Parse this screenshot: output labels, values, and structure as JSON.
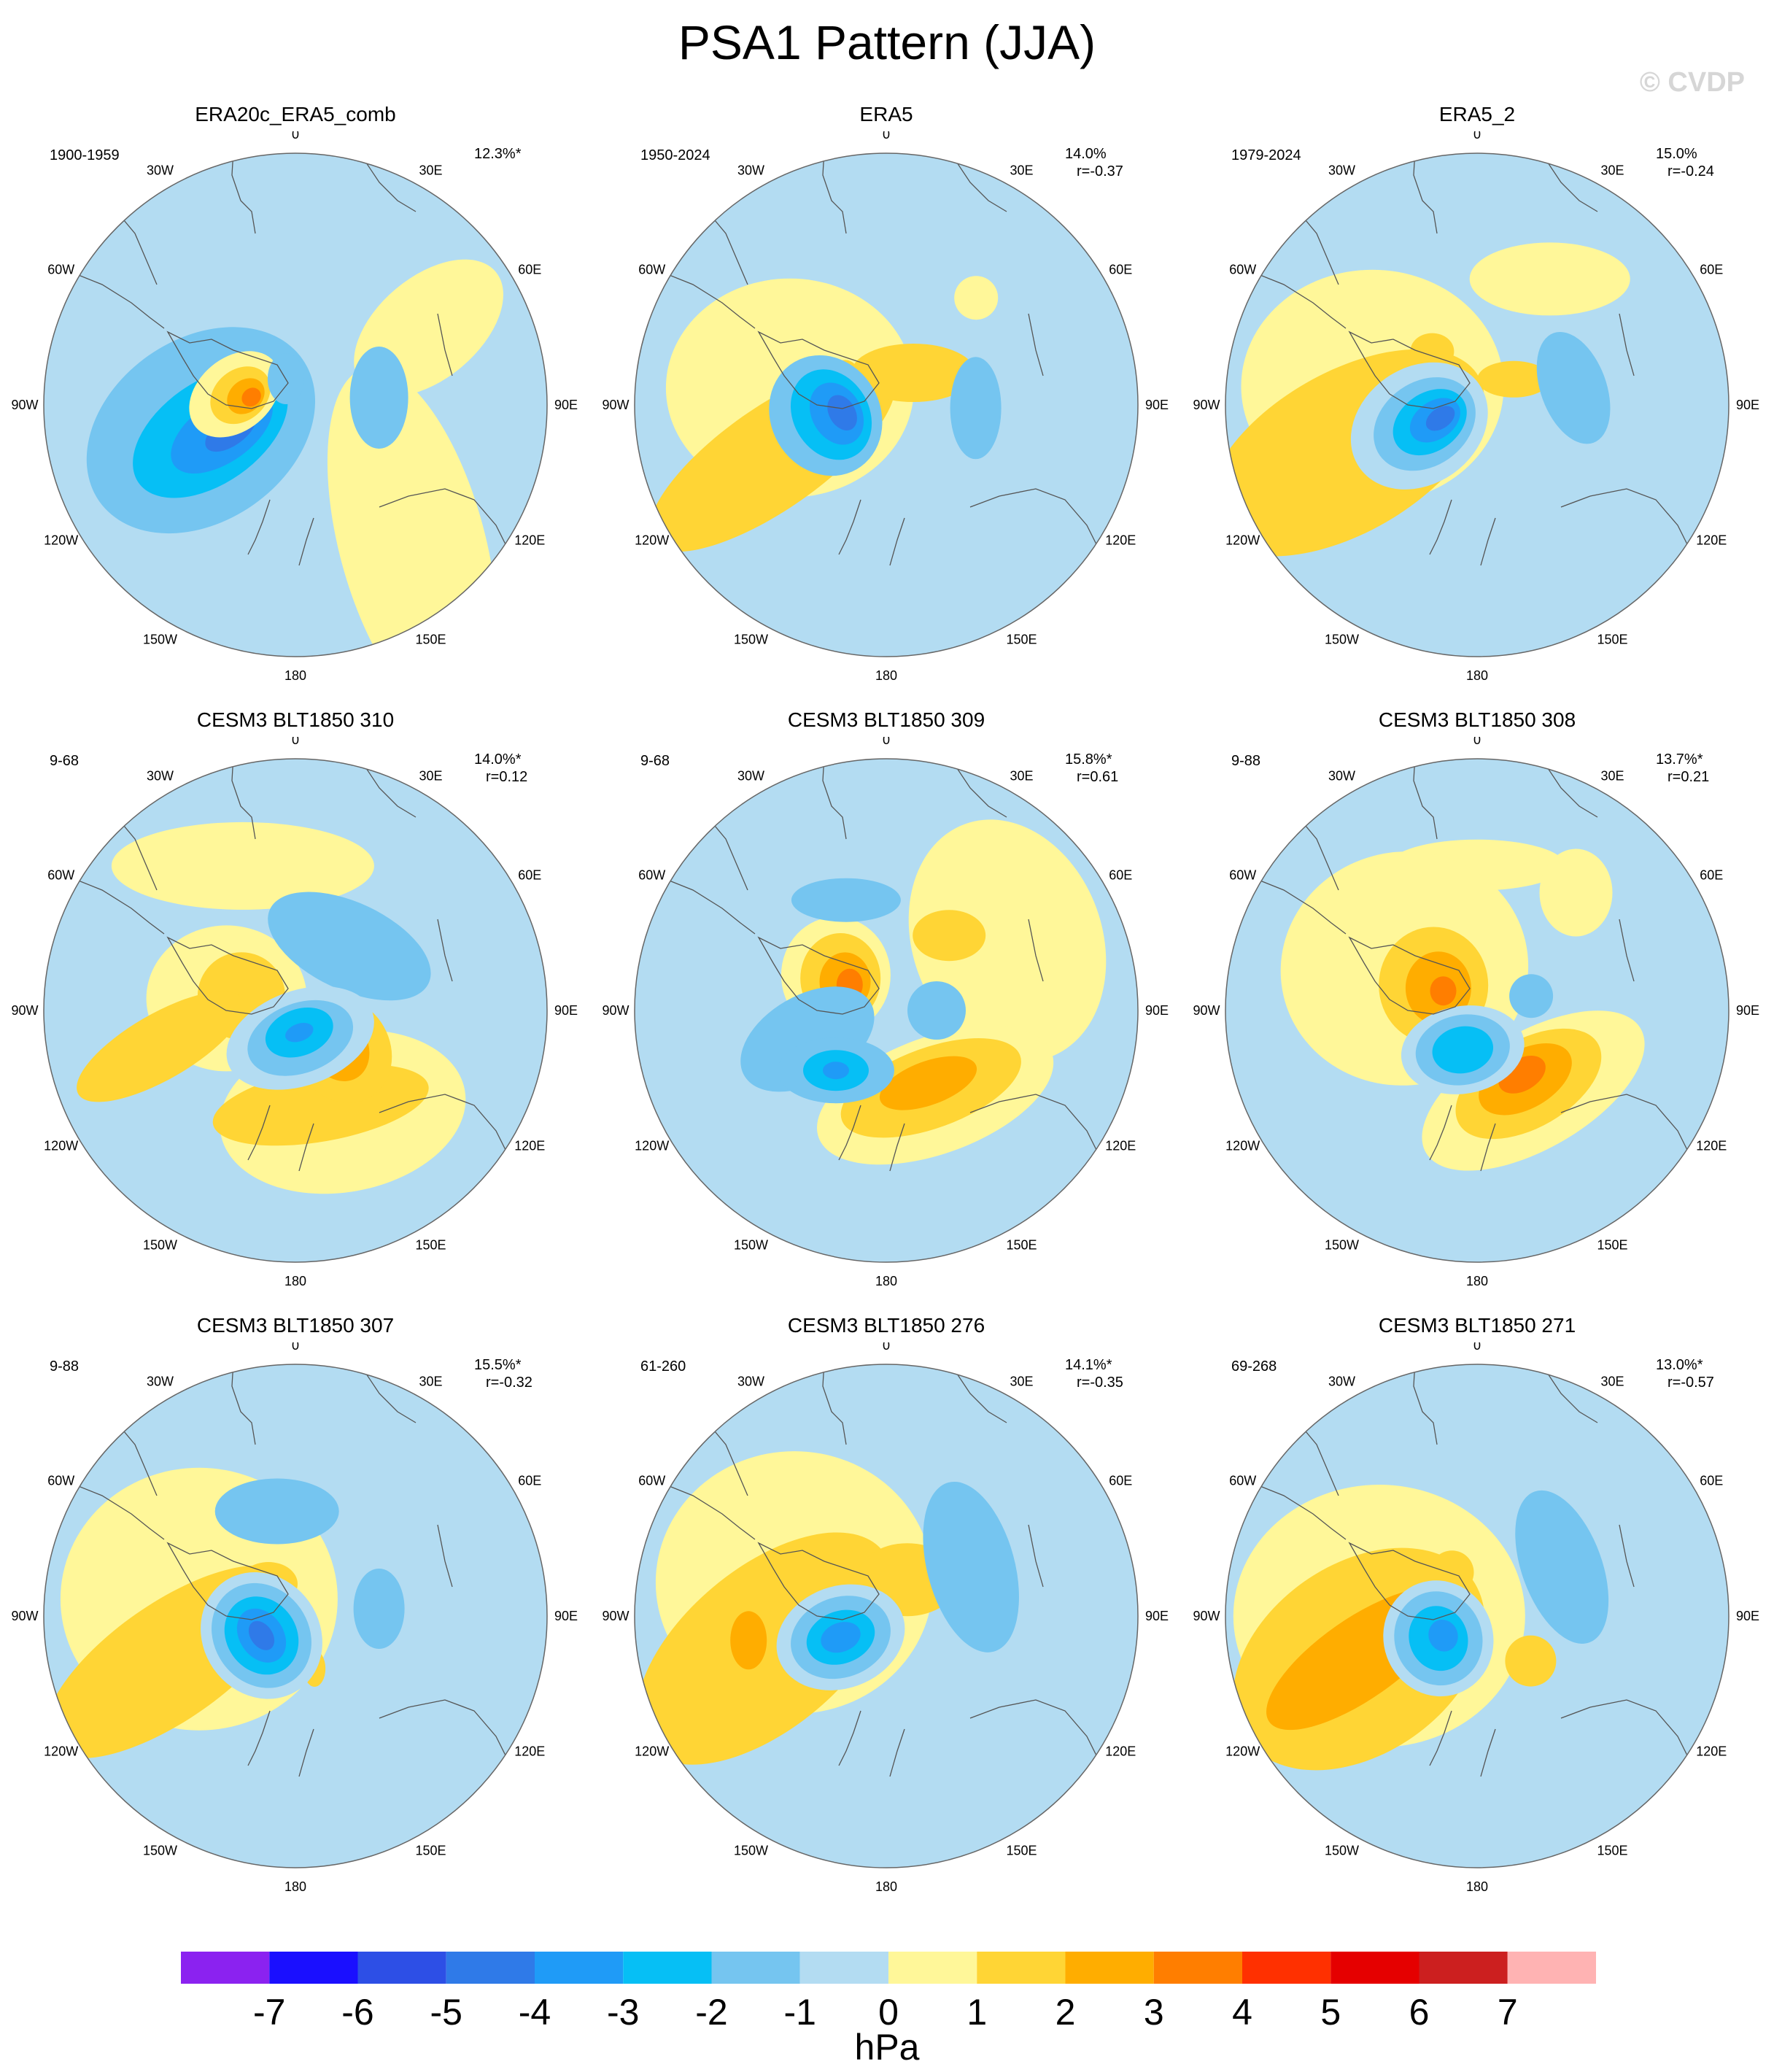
{
  "title": "PSA1 Pattern (JJA)",
  "watermark": "© CVDP",
  "colors": {
    "-1": "#b3dcf2",
    "-2": "#75c5f0",
    "-3": "#06bff5",
    "-4": "#1f9bf7",
    "-5": "#2f7ae8",
    "-6": "#2d4fe6",
    "1": "#fff799",
    "2": "#ffd535",
    "3": "#ffad00",
    "4": "#ff7e00",
    "5": "#ff3000"
  },
  "lon_labels": [
    "0",
    "30E",
    "60E",
    "90E",
    "120E",
    "150E",
    "180",
    "150W",
    "120W",
    "90W",
    "60W",
    "30W"
  ],
  "panels": [
    {
      "title": "ERA20c_ERA5_comb",
      "period": "1900-1959",
      "pct": "12.3%*",
      "corr": "",
      "blobs": [
        {
          "lon": 60,
          "lat": -35,
          "rx": 120,
          "ry": 70,
          "rot": -40,
          "level": 1
        },
        {
          "lon": 140,
          "lat": -25,
          "rx": 100,
          "ry": 250,
          "rot": -15,
          "level": 1
        },
        {
          "lon": -105,
          "lat": -55,
          "rx": 170,
          "ry": 125,
          "rot": -35,
          "level": -2
        },
        {
          "lon": -108,
          "lat": -58,
          "rx": 120,
          "ry": 70,
          "rot": -35,
          "level": -3
        },
        {
          "lon": -110,
          "lat": -62,
          "rx": 80,
          "ry": 42,
          "rot": -35,
          "level": -4
        },
        {
          "lon": -112,
          "lat": -65,
          "rx": 40,
          "ry": 20,
          "rot": -35,
          "level": -5
        },
        {
          "lon": -80,
          "lat": -68,
          "rx": 70,
          "ry": 50,
          "rot": -40,
          "level": 1
        },
        {
          "lon": -80,
          "lat": -70,
          "rx": 45,
          "ry": 35,
          "rot": -40,
          "level": 2
        },
        {
          "lon": -80,
          "lat": -72,
          "rx": 28,
          "ry": 22,
          "rot": -40,
          "level": 3
        },
        {
          "lon": -80,
          "lat": -74,
          "rx": 14,
          "ry": 12,
          "rot": -40,
          "level": 4
        },
        {
          "lon": 85,
          "lat": -60,
          "rx": 40,
          "ry": 70,
          "rot": 0,
          "level": -2
        },
        {
          "lon": -20,
          "lat": -80,
          "rx": 25,
          "ry": 35,
          "rot": 0,
          "level": -2
        }
      ]
    },
    {
      "title": "ERA5",
      "period": "1950-2024",
      "pct": "14.0%",
      "corr": "r=-0.37",
      "blobs": [
        {
          "lon": -80,
          "lat": -55,
          "rx": 170,
          "ry": 150,
          "rot": 0,
          "level": 1
        },
        {
          "lon": -115,
          "lat": -45,
          "rx": 200,
          "ry": 70,
          "rot": -35,
          "level": 2
        },
        {
          "lon": 40,
          "lat": -75,
          "rx": 85,
          "ry": 40,
          "rot": 0,
          "level": 2
        },
        {
          "lon": 40,
          "lat": -40,
          "rx": 30,
          "ry": 30,
          "rot": 0,
          "level": 1
        },
        {
          "lon": -55,
          "lat": -72,
          "rx": 20,
          "ry": 22,
          "rot": 0,
          "level": 2
        },
        {
          "lon": -100,
          "lat": -68,
          "rx": 75,
          "ry": 85,
          "rot": -30,
          "level": -2
        },
        {
          "lon": -100,
          "lat": -70,
          "rx": 52,
          "ry": 65,
          "rot": -30,
          "level": -3
        },
        {
          "lon": -100,
          "lat": -72,
          "rx": 34,
          "ry": 45,
          "rot": -30,
          "level": -4
        },
        {
          "lon": -100,
          "lat": -74,
          "rx": 18,
          "ry": 26,
          "rot": -30,
          "level": -5
        },
        {
          "lon": 92,
          "lat": -58,
          "rx": 35,
          "ry": 70,
          "rot": 0,
          "level": -2
        }
      ]
    },
    {
      "title": "ERA5_2",
      "period": "1979-2024",
      "pct": "15.0%",
      "corr": "r=-0.24",
      "blobs": [
        {
          "lon": -80,
          "lat": -52,
          "rx": 180,
          "ry": 160,
          "rot": 0,
          "level": 1
        },
        {
          "lon": -110,
          "lat": -40,
          "rx": 210,
          "ry": 110,
          "rot": -30,
          "level": 2
        },
        {
          "lon": 30,
          "lat": -38,
          "rx": 110,
          "ry": 50,
          "rot": 0,
          "level": 1
        },
        {
          "lon": 55,
          "lat": -74,
          "rx": 50,
          "ry": 25,
          "rot": 0,
          "level": 2
        },
        {
          "lon": -40,
          "lat": -65,
          "rx": 30,
          "ry": 25,
          "rot": 0,
          "level": 2
        },
        {
          "lon": -110,
          "lat": -68,
          "rx": 100,
          "ry": 80,
          "rot": -35,
          "level": -1
        },
        {
          "lon": -110,
          "lat": -70,
          "rx": 75,
          "ry": 58,
          "rot": -35,
          "level": -2
        },
        {
          "lon": -110,
          "lat": -72,
          "rx": 55,
          "ry": 40,
          "rot": -35,
          "level": -3
        },
        {
          "lon": -110,
          "lat": -74,
          "rx": 38,
          "ry": 26,
          "rot": -35,
          "level": -4
        },
        {
          "lon": -110,
          "lat": -76,
          "rx": 22,
          "ry": 14,
          "rot": -35,
          "level": -5
        },
        {
          "lon": 80,
          "lat": -55,
          "rx": 45,
          "ry": 80,
          "rot": -20,
          "level": -2
        }
      ]
    },
    {
      "title": "CESM3 BLT1850 310",
      "period": "9-68",
      "pct": "14.0%*",
      "corr": "r=0.12",
      "blobs": [
        {
          "lon": -20,
          "lat": -35,
          "rx": 180,
          "ry": 60,
          "rot": 0,
          "level": 1
        },
        {
          "lon": -80,
          "lat": -65,
          "rx": 110,
          "ry": 100,
          "rot": 0,
          "level": 1
        },
        {
          "lon": -75,
          "lat": -70,
          "rx": 60,
          "ry": 60,
          "rot": 0,
          "level": 2
        },
        {
          "lon": -105,
          "lat": -40,
          "rx": 130,
          "ry": 45,
          "rot": -30,
          "level": 2
        },
        {
          "lon": 155,
          "lat": -50,
          "rx": 170,
          "ry": 110,
          "rot": -10,
          "level": 1
        },
        {
          "lon": 165,
          "lat": -55,
          "rx": 150,
          "ry": 50,
          "rot": -10,
          "level": 2
        },
        {
          "lon": 130,
          "lat": -68,
          "rx": 65,
          "ry": 75,
          "rot": -30,
          "level": 2
        },
        {
          "lon": 130,
          "lat": -70,
          "rx": 40,
          "ry": 50,
          "rot": -30,
          "level": 3
        },
        {
          "lon": 40,
          "lat": -60,
          "rx": 120,
          "ry": 60,
          "rot": 25,
          "level": -2
        },
        {
          "lon": 170,
          "lat": -80,
          "rx": 105,
          "ry": 65,
          "rot": -20,
          "level": -1
        },
        {
          "lon": 170,
          "lat": -80,
          "rx": 75,
          "ry": 48,
          "rot": -20,
          "level": -2
        },
        {
          "lon": 170,
          "lat": -82,
          "rx": 48,
          "ry": 32,
          "rot": -20,
          "level": -3
        },
        {
          "lon": 170,
          "lat": -82,
          "rx": 20,
          "ry": 12,
          "rot": -20,
          "level": -4
        }
      ]
    },
    {
      "title": "CESM3 BLT1850 309",
      "period": "9-68",
      "pct": "15.8%*",
      "corr": "r=0.61",
      "blobs": [
        {
          "lon": 60,
          "lat": -40,
          "rx": 130,
          "ry": 170,
          "rot": -20,
          "level": 1
        },
        {
          "lon": 40,
          "lat": -55,
          "rx": 50,
          "ry": 35,
          "rot": 0,
          "level": 2
        },
        {
          "lon": -55,
          "lat": -68,
          "rx": 75,
          "ry": 80,
          "rot": 0,
          "level": 1
        },
        {
          "lon": -55,
          "lat": -70,
          "rx": 55,
          "ry": 62,
          "rot": 0,
          "level": 2
        },
        {
          "lon": -55,
          "lat": -72,
          "rx": 35,
          "ry": 40,
          "rot": 0,
          "level": 3
        },
        {
          "lon": -55,
          "lat": -74,
          "rx": 18,
          "ry": 22,
          "rot": 0,
          "level": 4
        },
        {
          "lon": 150,
          "lat": -55,
          "rx": 170,
          "ry": 80,
          "rot": -20,
          "level": 1
        },
        {
          "lon": 150,
          "lat": -58,
          "rx": 130,
          "ry": 55,
          "rot": -20,
          "level": 2
        },
        {
          "lon": 150,
          "lat": -60,
          "rx": 70,
          "ry": 30,
          "rot": -20,
          "level": 3
        },
        {
          "lon": -20,
          "lat": -48,
          "rx": 75,
          "ry": 30,
          "rot": 0,
          "level": -2
        },
        {
          "lon": -110,
          "lat": -60,
          "rx": 100,
          "ry": 60,
          "rot": -30,
          "level": -2
        },
        {
          "lon": -140,
          "lat": -62,
          "rx": 80,
          "ry": 45,
          "rot": 0,
          "level": -2
        },
        {
          "lon": -140,
          "lat": -62,
          "rx": 45,
          "ry": 28,
          "rot": 0,
          "level": -3
        },
        {
          "lon": -140,
          "lat": -62,
          "rx": 18,
          "ry": 12,
          "rot": 0,
          "level": -4
        },
        {
          "lon": 90,
          "lat": -72,
          "rx": 40,
          "ry": 40,
          "rot": 0,
          "level": -2
        }
      ]
    },
    {
      "title": "CESM3 BLT1850 308",
      "period": "9-88",
      "pct": "13.7%*",
      "corr": "r=0.21",
      "blobs": [
        {
          "lon": 0,
          "lat": -38,
          "rx": 120,
          "ry": 35,
          "rot": 0,
          "level": 1
        },
        {
          "lon": 40,
          "lat": -35,
          "rx": 50,
          "ry": 60,
          "rot": 0,
          "level": 1
        },
        {
          "lon": -60,
          "lat": -60,
          "rx": 170,
          "ry": 160,
          "rot": -10,
          "level": 1
        },
        {
          "lon": -60,
          "lat": -72,
          "rx": 75,
          "ry": 80,
          "rot": 0,
          "level": 2
        },
        {
          "lon": -60,
          "lat": -74,
          "rx": 45,
          "ry": 50,
          "rot": 0,
          "level": 3
        },
        {
          "lon": -60,
          "lat": -76,
          "rx": 18,
          "ry": 20,
          "rot": 0,
          "level": 4
        },
        {
          "lon": 145,
          "lat": -55,
          "rx": 170,
          "ry": 80,
          "rot": -30,
          "level": 1
        },
        {
          "lon": 145,
          "lat": -58,
          "rx": 110,
          "ry": 60,
          "rot": -30,
          "level": 2
        },
        {
          "lon": 145,
          "lat": -60,
          "rx": 70,
          "ry": 40,
          "rot": -30,
          "level": 3
        },
        {
          "lon": 145,
          "lat": -62,
          "rx": 35,
          "ry": 22,
          "rot": -30,
          "level": 4
        },
        {
          "lon": -160,
          "lat": -75,
          "rx": 85,
          "ry": 60,
          "rot": -10,
          "level": -1
        },
        {
          "lon": -160,
          "lat": -75,
          "rx": 65,
          "ry": 48,
          "rot": -10,
          "level": -2
        },
        {
          "lon": -160,
          "lat": -75,
          "rx": 42,
          "ry": 32,
          "rot": -10,
          "level": -3
        },
        {
          "lon": 75,
          "lat": -70,
          "rx": 30,
          "ry": 30,
          "rot": 0,
          "level": -2
        }
      ]
    },
    {
      "title": "CESM3 BLT1850 307",
      "period": "9-88",
      "pct": "15.5%*",
      "corr": "r=-0.32",
      "blobs": [
        {
          "lon": -80,
          "lat": -55,
          "rx": 190,
          "ry": 180,
          "rot": 0,
          "level": 1
        },
        {
          "lon": -110,
          "lat": -42,
          "rx": 200,
          "ry": 80,
          "rot": -35,
          "level": 2
        },
        {
          "lon": -40,
          "lat": -75,
          "rx": 40,
          "ry": 30,
          "rot": 0,
          "level": 2
        },
        {
          "lon": 160,
          "lat": -70,
          "rx": 15,
          "ry": 25,
          "rot": 0,
          "level": 2
        },
        {
          "lon": -120,
          "lat": -76,
          "rx": 80,
          "ry": 90,
          "rot": -35,
          "level": -1
        },
        {
          "lon": -120,
          "lat": -76,
          "rx": 65,
          "ry": 75,
          "rot": -35,
          "level": -2
        },
        {
          "lon": -120,
          "lat": -76,
          "rx": 48,
          "ry": 56,
          "rot": -35,
          "level": -3
        },
        {
          "lon": -120,
          "lat": -76,
          "rx": 30,
          "ry": 40,
          "rot": -35,
          "level": -4
        },
        {
          "lon": -120,
          "lat": -76,
          "rx": 15,
          "ry": 22,
          "rot": -35,
          "level": -5
        },
        {
          "lon": -10,
          "lat": -52,
          "rx": 85,
          "ry": 45,
          "rot": 0,
          "level": -2
        },
        {
          "lon": 85,
          "lat": -60,
          "rx": 35,
          "ry": 55,
          "rot": 0,
          "level": -2
        }
      ]
    },
    {
      "title": "CESM3 BLT1850 276",
      "period": "61-260",
      "pct": "14.1%*",
      "corr": "r=-0.35",
      "blobs": [
        {
          "lon": -70,
          "lat": -55,
          "rx": 190,
          "ry": 180,
          "rot": 0,
          "level": 1
        },
        {
          "lon": -105,
          "lat": -45,
          "rx": 210,
          "ry": 110,
          "rot": -40,
          "level": 2
        },
        {
          "lon": 30,
          "lat": -75,
          "rx": 70,
          "ry": 50,
          "rot": 0,
          "level": 2
        },
        {
          "lon": -100,
          "lat": -40,
          "rx": 25,
          "ry": 40,
          "rot": 0,
          "level": 3
        },
        {
          "lon": 60,
          "lat": -55,
          "rx": 60,
          "ry": 120,
          "rot": -15,
          "level": -2
        },
        {
          "lon": -115,
          "lat": -72,
          "rx": 90,
          "ry": 70,
          "rot": -20,
          "level": -1
        },
        {
          "lon": -115,
          "lat": -72,
          "rx": 70,
          "ry": 55,
          "rot": -20,
          "level": -2
        },
        {
          "lon": -115,
          "lat": -72,
          "rx": 48,
          "ry": 36,
          "rot": -20,
          "level": -3
        },
        {
          "lon": -115,
          "lat": -72,
          "rx": 28,
          "ry": 20,
          "rot": -20,
          "level": -4
        }
      ]
    },
    {
      "title": "CESM3 BLT1850 271",
      "period": "69-268",
      "pct": "13.0%*",
      "corr": "r=-0.57",
      "blobs": [
        {
          "lon": -90,
          "lat": -55,
          "rx": 200,
          "ry": 180,
          "rot": 0,
          "level": 1
        },
        {
          "lon": -110,
          "lat": -45,
          "rx": 190,
          "ry": 130,
          "rot": -35,
          "level": 2
        },
        {
          "lon": -110,
          "lat": -45,
          "rx": 150,
          "ry": 55,
          "rot": -35,
          "level": 3
        },
        {
          "lon": 130,
          "lat": -65,
          "rx": 35,
          "ry": 35,
          "rot": 0,
          "level": 2
        },
        {
          "lon": -30,
          "lat": -72,
          "rx": 30,
          "ry": 30,
          "rot": 0,
          "level": 2
        },
        {
          "lon": 60,
          "lat": -55,
          "rx": 55,
          "ry": 110,
          "rot": -20,
          "level": -2
        },
        {
          "lon": -120,
          "lat": -74,
          "rx": 75,
          "ry": 80,
          "rot": -20,
          "level": -1
        },
        {
          "lon": -120,
          "lat": -74,
          "rx": 60,
          "ry": 65,
          "rot": -20,
          "level": -2
        },
        {
          "lon": -120,
          "lat": -74,
          "rx": 40,
          "ry": 45,
          "rot": -20,
          "level": -3
        },
        {
          "lon": -120,
          "lat": -76,
          "rx": 20,
          "ry": 22,
          "rot": -20,
          "level": -4
        }
      ]
    }
  ],
  "colorbar": {
    "colors": [
      "#8b22f0",
      "#1a0fff",
      "#2d4fe6",
      "#2f7ae8",
      "#1f9bf7",
      "#06bff5",
      "#75c5f0",
      "#b3dcf2",
      "#fff799",
      "#ffd535",
      "#ffad00",
      "#ff7e00",
      "#ff3000",
      "#e50000",
      "#cc1f1f",
      "#ffb3b3"
    ],
    "ticks": [
      "-7",
      "-6",
      "-5",
      "-4",
      "-3",
      "-2",
      "-1",
      "0",
      "1",
      "2",
      "3",
      "4",
      "5",
      "6",
      "7"
    ],
    "units": "hPa"
  }
}
